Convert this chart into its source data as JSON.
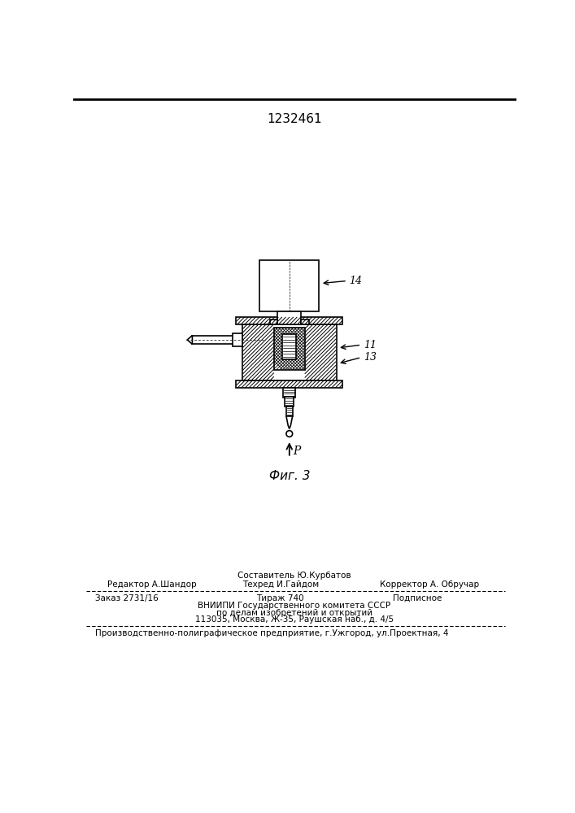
{
  "title_number": "1232461",
  "fig_caption": "Фиг. 3",
  "label_14": "14",
  "label_11": "11",
  "label_13": "13",
  "label_P": "P",
  "editor_line": "Редактор А.Шандор",
  "composer_line": "Составитель Ю.Курбатов",
  "techred_line": "Техред И.Гайдом",
  "corrector_line": "Корректор А. Обручар",
  "order_line": "Заказ 2731/16",
  "tirazh_line": "Тираж 740",
  "podpisnoe_line": "Подписное",
  "vniip_line1": "ВНИИПИ Государственного комитета СССР",
  "vniip_line2": "по делам изобретений и открытий",
  "vniip_line3": "113035, Москва, Ж-35, Раушская наб., д. 4/5",
  "factory_line": "Производственно-полиграфическое предприятие, г.Ужгород, ул.Проектная, 4",
  "bg_color": "#ffffff"
}
